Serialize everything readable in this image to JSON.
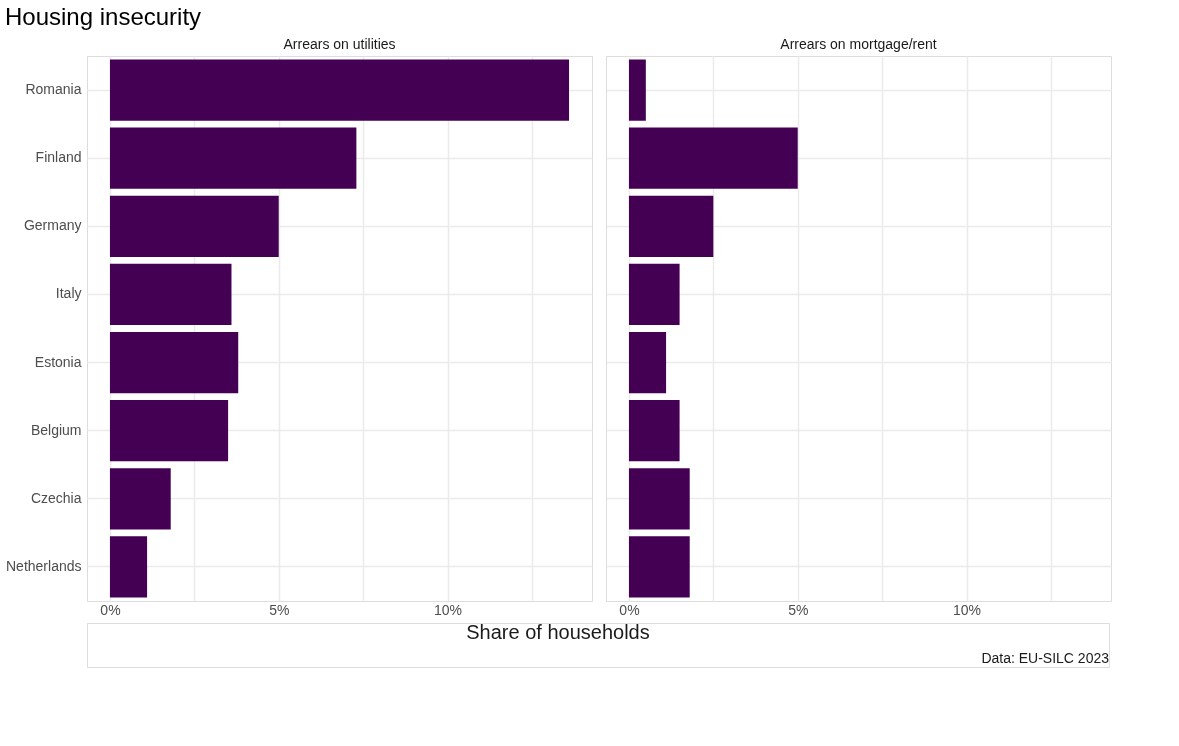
{
  "chart_data": [
    {
      "type": "bar",
      "orientation": "horizontal",
      "title": "Housing insecurity",
      "subtitle": "Arrears on utilities",
      "xlabel": "Share of households",
      "color": "#440154",
      "grid": true,
      "categories": [
        "Romania",
        "Finland",
        "Germany",
        "Italy",
        "Estonia",
        "Belgium",
        "Czechia",
        "Netherlands"
      ],
      "values": [
        13.6,
        7.3,
        5.0,
        3.6,
        3.8,
        3.5,
        1.8,
        1.1
      ],
      "xlim": [
        -0.68,
        14.28
      ],
      "xticks": [
        {
          "value": 0,
          "label": "0%"
        },
        {
          "value": 2.5,
          "label": null
        },
        {
          "value": 5,
          "label": "5%"
        },
        {
          "value": 7.5,
          "label": null
        },
        {
          "value": 10,
          "label": "10%"
        },
        {
          "value": 12.5,
          "label": null
        }
      ]
    },
    {
      "type": "bar",
      "orientation": "horizontal",
      "subtitle": "Arrears on mortgage/rent",
      "color": "#440154",
      "grid": true,
      "tick_labels": "x",
      "annotations": [
        "Data: EU-SILC 2023"
      ],
      "categories": [
        "Romania",
        "Finland",
        "Germany",
        "Italy",
        "Estonia",
        "Belgium",
        "Czechia",
        "Netherlands"
      ],
      "values": [
        0.5,
        5.0,
        2.5,
        1.5,
        1.1,
        1.5,
        1.8,
        1.8
      ],
      "xlim": [
        -0.68,
        14.28
      ],
      "xticks": [
        {
          "value": 0,
          "label": "0%"
        },
        {
          "value": 2.5,
          "label": null
        },
        {
          "value": 5,
          "label": "5%"
        },
        {
          "value": 7.5,
          "label": null
        },
        {
          "value": 10,
          "label": "10%"
        },
        {
          "value": 12.5,
          "label": null
        }
      ]
    }
  ]
}
